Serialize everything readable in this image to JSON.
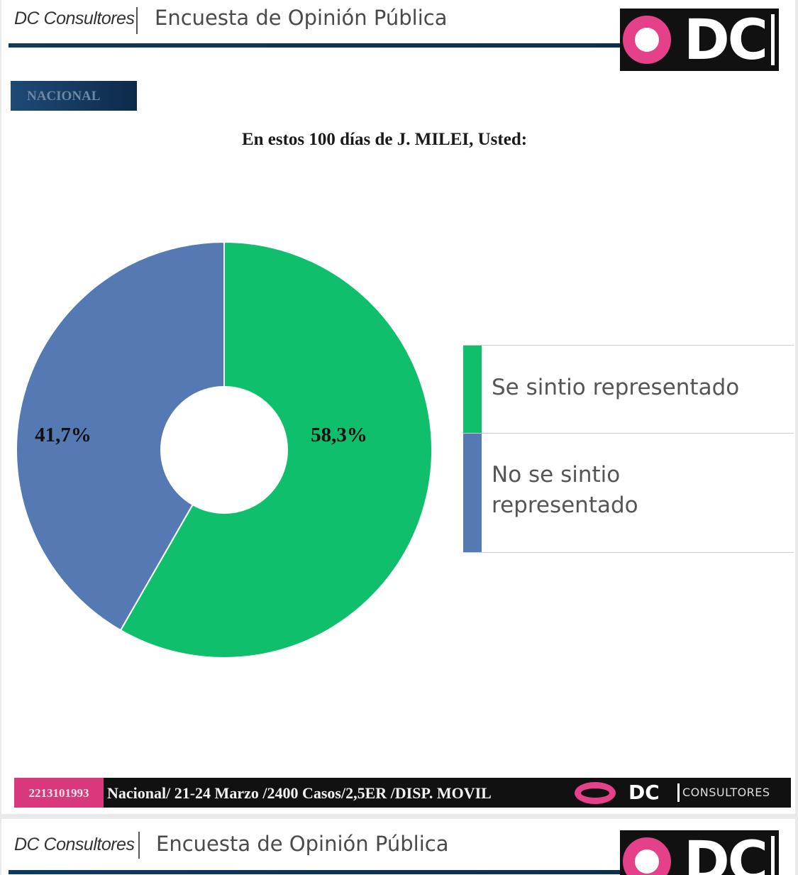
{
  "header": {
    "brand": "DC Consultores",
    "survey_title": "Encuesta de Opinión Pública",
    "logo_text": "DC"
  },
  "region_tag": "NACIONAL",
  "question": "En estos 100 días de J. MILEI, Usted:",
  "chart_data": {
    "type": "pie",
    "donut": true,
    "title": "En estos 100 días de J. MILEI, Usted:",
    "categories": [
      "Se sintio representado",
      "No se sintio representado"
    ],
    "values": [
      58.3,
      41.7
    ],
    "data_labels": [
      "58,3%",
      "41,7%"
    ],
    "colors": [
      "#0fbf6b",
      "#5479b3"
    ],
    "legend_position": "right"
  },
  "legend": [
    {
      "label": "Se sintio representado",
      "color": "#0fbf6b"
    },
    {
      "label": "No se sintio representado",
      "color": "#5479b3"
    }
  ],
  "footer": {
    "phone": "2213101993",
    "info": "Nacional/ 21-24 Marzo /2400 Casos/2,5ER /DISP. MOVIL",
    "logo_text": "DC",
    "consultores": "CONSULTORES"
  },
  "colors": {
    "accent_pink": "#e5418a",
    "header_rule": "#0e3a5f",
    "green": "#0fbf6b",
    "blue": "#5479b3"
  }
}
